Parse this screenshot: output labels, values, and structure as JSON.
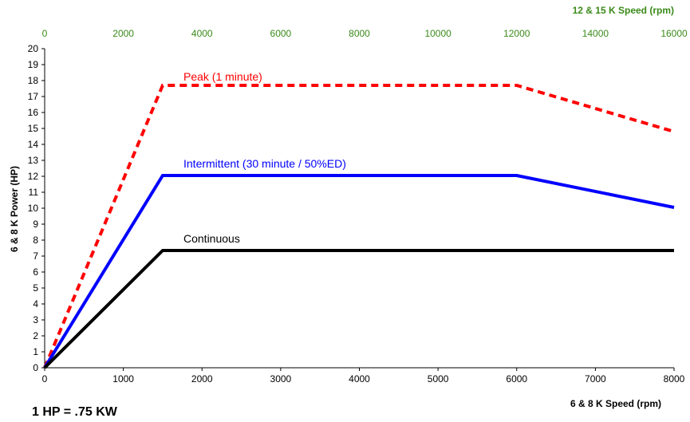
{
  "chart_data": {
    "type": "line",
    "bottom_axis": {
      "label": "6 &  8 K Speed (rpm)",
      "min": 0,
      "max": 8000,
      "ticks": [
        0,
        1000,
        2000,
        3000,
        4000,
        5000,
        6000,
        7000,
        8000
      ]
    },
    "top_axis": {
      "label": "12 & 15 K Speed (rpm)",
      "min": 0,
      "max": 16000,
      "ticks": [
        0,
        2000,
        4000,
        6000,
        8000,
        10000,
        12000,
        14000,
        16000
      ],
      "color": "#3a8a1a"
    },
    "y_axis": {
      "label": "6 & 8 K Power (HP)",
      "min": 0,
      "max": 20,
      "ticks": [
        0,
        1,
        2,
        3,
        4,
        5,
        6,
        7,
        8,
        9,
        10,
        11,
        12,
        13,
        14,
        15,
        16,
        17,
        18,
        19,
        20
      ]
    },
    "grid": false,
    "series": [
      {
        "name": "Peak (1 minute)",
        "color": "#ff0000",
        "style": "dashed",
        "points": [
          [
            0,
            0
          ],
          [
            1500,
            17.7
          ],
          [
            6000,
            17.7
          ],
          [
            8000,
            14.8
          ]
        ]
      },
      {
        "name": "Intermittent (30 minute / 50%ED)",
        "color": "#0000ff",
        "style": "solid",
        "points": [
          [
            0,
            0
          ],
          [
            1500,
            12.05
          ],
          [
            6000,
            12.05
          ],
          [
            8000,
            10.05
          ]
        ]
      },
      {
        "name": "Continuous",
        "color": "#000000",
        "style": "solid",
        "points": [
          [
            0,
            0
          ],
          [
            1500,
            7.35
          ],
          [
            8000,
            7.35
          ]
        ]
      }
    ]
  },
  "note": "1 HP = .75 KW"
}
